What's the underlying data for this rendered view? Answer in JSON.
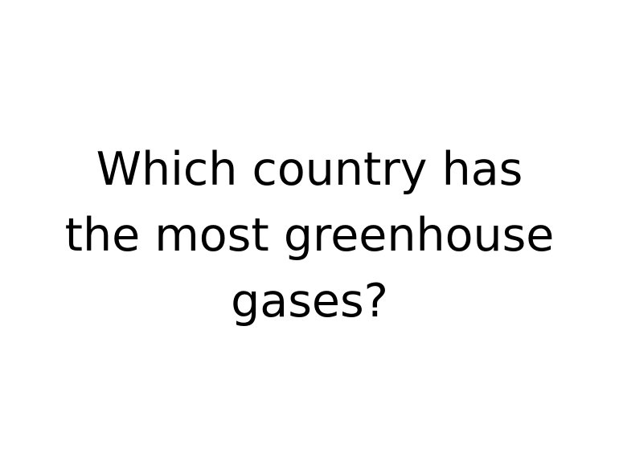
{
  "slide": {
    "question_line_1": "Which country has",
    "question_line_2": "the most greenhouse",
    "question_line_3": "gases?",
    "text_color": "#000000",
    "background_color": "#ffffff"
  }
}
